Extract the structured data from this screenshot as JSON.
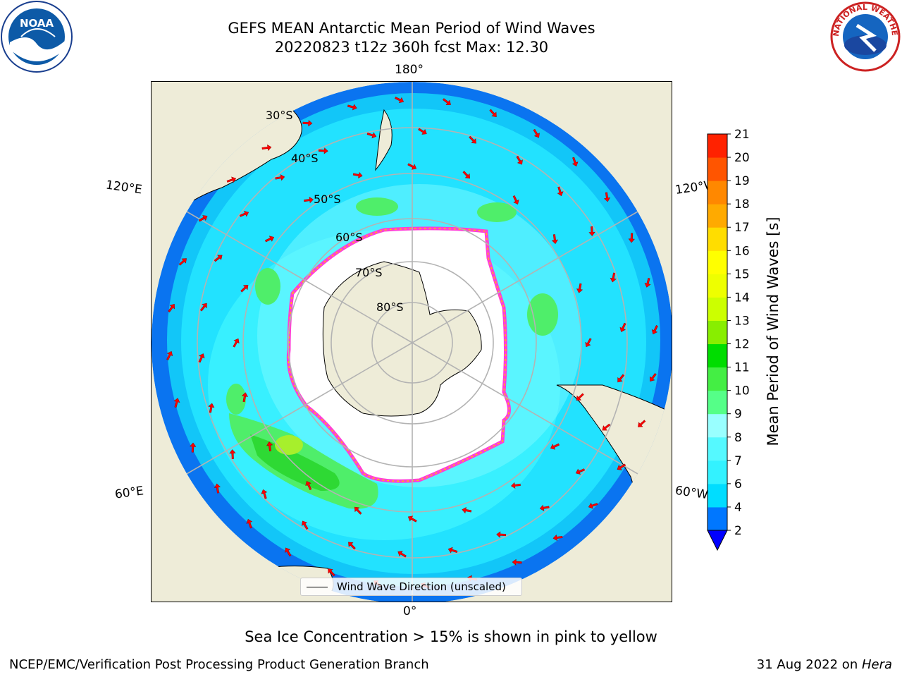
{
  "title": {
    "line1": "GEFS MEAN Antarctic Mean Period of Wind Waves",
    "line2": "20220823 t12z 360h fcst   Max: 12.30"
  },
  "map": {
    "lon_labels": {
      "top": "180°",
      "bottom": "0°",
      "upper_left": "120°E",
      "upper_right": "120°W",
      "lower_left": "60°E",
      "lower_right": "60°W"
    },
    "lat_labels": [
      "30°S",
      "40°S",
      "50°S",
      "60°S",
      "70°S",
      "80°S"
    ],
    "legend": "Wind Wave Direction (unscaled)",
    "colors": {
      "land": "#eeecd8",
      "ocean_deep": "#0077ff",
      "ocean_mid": "#00ddff",
      "ocean_light": "#3ff4ff",
      "wave_green": "#42f06a",
      "arrow": "#ff0000",
      "ice_pink": "#ff44dd",
      "ice_yellow": "#ffcc00"
    }
  },
  "colorbar": {
    "label": "Mean Period of Wind Waves [s]",
    "ticks": [
      "2",
      "4",
      "6",
      "7",
      "8",
      "9",
      "10",
      "11",
      "12",
      "13",
      "14",
      "15",
      "16",
      "17",
      "18",
      "19",
      "20",
      "21"
    ],
    "colors": [
      "#0077ff",
      "#00ddff",
      "#33f2ff",
      "#55f9ff",
      "#99ffff",
      "#55ff88",
      "#44ee44",
      "#00dd00",
      "#88ee00",
      "#ccff00",
      "#eeff00",
      "#ffff00",
      "#ffdd00",
      "#ffaa00",
      "#ff8800",
      "#ff5500",
      "#ff2200"
    ],
    "extend_color": "#0000ff"
  },
  "caption": "Sea Ice Concentration > 15% is shown in pink to yellow",
  "footer": {
    "left": "NCEP/EMC/Verification Post Processing Product Generation Branch",
    "right_date": "31 Aug 2022 on ",
    "right_host": "Hera"
  }
}
